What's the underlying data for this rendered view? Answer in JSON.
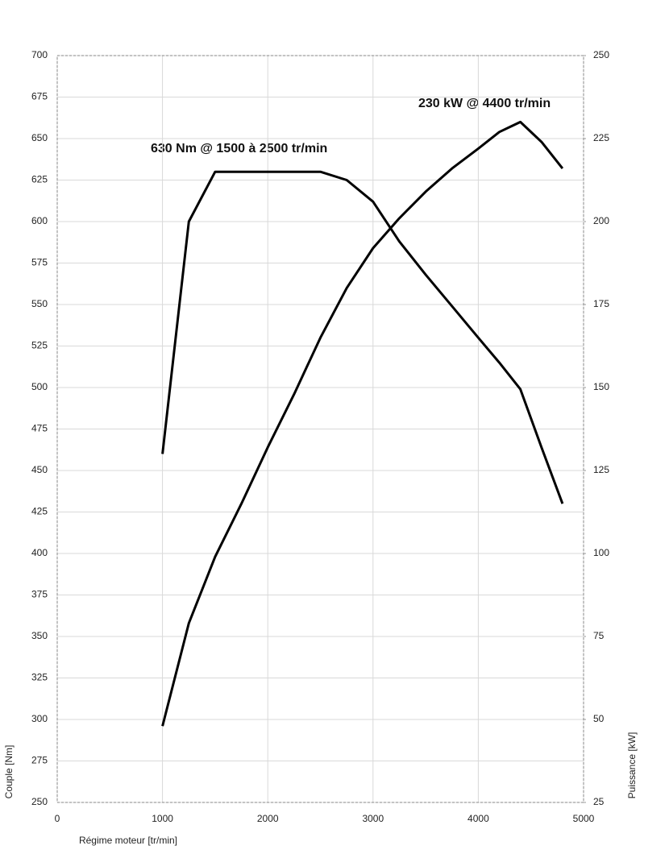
{
  "chart_data": {
    "type": "line",
    "annotations": [
      "630 Nm @ 1500 à 2500 tr/min",
      "230 kW @ 4400 tr/min"
    ],
    "xlabel": "Régime moteur [tr/min]",
    "ylabel": "Couple [Nm]",
    "y2label": "Puissance [kW]",
    "x": [
      1000,
      1250,
      1500,
      1750,
      2000,
      2250,
      2500,
      2750,
      3000,
      3250,
      3500,
      3750,
      4000,
      4200,
      4400,
      4600,
      4800
    ],
    "series": [
      {
        "color": "#000000",
        "values": [
          460,
          600,
          630,
          630,
          630,
          630,
          630,
          625,
          612,
          588,
          568,
          549,
          530,
          515,
          499,
          464,
          430
        ]
      },
      {
        "color": "#000000",
        "axis": "y2",
        "values": [
          48,
          79,
          99,
          115,
          132,
          148,
          165,
          180,
          192,
          201,
          209,
          216,
          222,
          227,
          230,
          224,
          216
        ]
      }
    ],
    "xlim": [
      0,
      5000
    ],
    "xticks": [
      0,
      1000,
      2000,
      3000,
      4000,
      5000
    ],
    "ylim": [
      250,
      700
    ],
    "yticks": [
      250,
      275,
      300,
      325,
      350,
      375,
      400,
      425,
      450,
      475,
      500,
      525,
      550,
      575,
      600,
      625,
      650,
      675,
      700
    ],
    "y2lim": [
      25,
      250
    ],
    "y2ticks": [
      25,
      50,
      75,
      100,
      125,
      150,
      175,
      200,
      225,
      250
    ],
    "grid": true
  }
}
